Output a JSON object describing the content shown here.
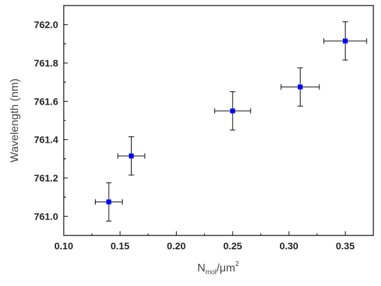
{
  "chart_data": {
    "type": "scatter",
    "xlabel": {
      "base": "N",
      "sub": "mol",
      "sep": "/μm",
      "sup": "2"
    },
    "ylabel": "Wavelength (nm)",
    "xlim": [
      0.1,
      0.375
    ],
    "ylim": [
      760.9,
      762.1
    ],
    "xticks": [
      "0.10",
      "0.15",
      "0.20",
      "0.25",
      "0.30",
      "0.35"
    ],
    "yticks": [
      "761.0",
      "761.2",
      "761.4",
      "761.6",
      "761.8",
      "762.0"
    ],
    "grid": false,
    "marker_color": "#0000ff",
    "errorbar_color": "#000000",
    "points": [
      {
        "x": 0.14,
        "y": 761.075,
        "xerr": 0.012,
        "yerr": 0.1
      },
      {
        "x": 0.16,
        "y": 761.315,
        "xerr": 0.012,
        "yerr": 0.1
      },
      {
        "x": 0.25,
        "y": 761.55,
        "xerr": 0.016,
        "yerr": 0.1
      },
      {
        "x": 0.31,
        "y": 761.675,
        "xerr": 0.017,
        "yerr": 0.1
      },
      {
        "x": 0.35,
        "y": 761.915,
        "xerr": 0.019,
        "yerr": 0.1
      }
    ]
  }
}
